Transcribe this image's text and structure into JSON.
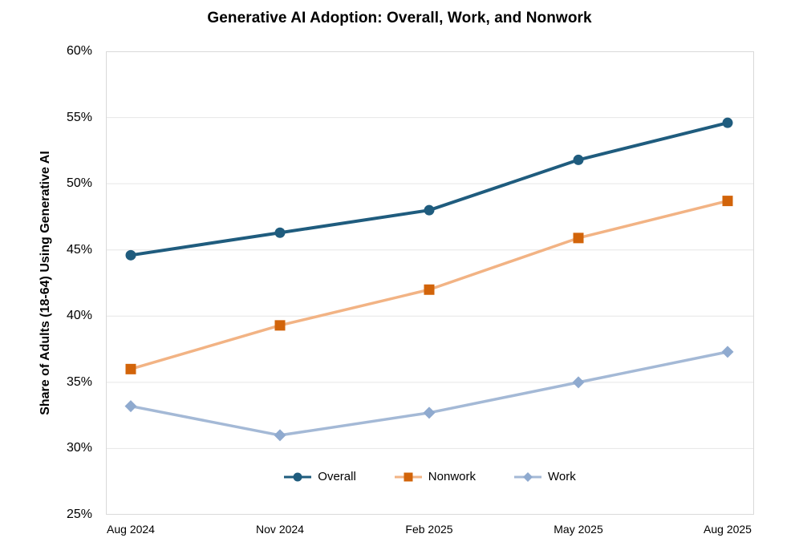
{
  "title": "Generative AI Adoption: Overall, Work, and Nonwork",
  "chart_data": {
    "type": "line",
    "title": "Generative AI Adoption: Overall, Work, and Nonwork",
    "xlabel": "",
    "ylabel": "Share of Adults (18-64) Using Generative AI",
    "categories": [
      "Aug 2024",
      "Nov 2024",
      "Feb 2025",
      "May 2025",
      "Aug 2025"
    ],
    "series": [
      {
        "name": "Overall",
        "values": [
          44.6,
          46.3,
          48.0,
          51.8,
          54.6
        ],
        "marker": "circle",
        "line_color": "#1F5C7E",
        "marker_color": "#1F5C7E",
        "line_width": 4
      },
      {
        "name": "Nonwork",
        "values": [
          36.0,
          39.3,
          42.0,
          45.9,
          48.7
        ],
        "marker": "square",
        "line_color": "#F2B384",
        "marker_color": "#D2640A",
        "line_width": 3.5
      },
      {
        "name": "Work",
        "values": [
          33.2,
          31.0,
          32.7,
          35.0,
          37.3
        ],
        "marker": "diamond",
        "line_color": "#A4B9D6",
        "marker_color": "#8FAACF",
        "line_width": 3.5
      }
    ],
    "ylim": [
      25,
      60
    ],
    "y_tick_step": 5,
    "y_tick_labels": [
      "25%",
      "30%",
      "35%",
      "40%",
      "45%",
      "50%",
      "55%",
      "60%"
    ],
    "grid": "horizontal",
    "legend_position": "bottom-inside",
    "colors": {
      "background": "#FFFFFF",
      "gridline": "#E6E6E6",
      "plot_border": "#D9D9D9",
      "text": "#000000"
    }
  }
}
